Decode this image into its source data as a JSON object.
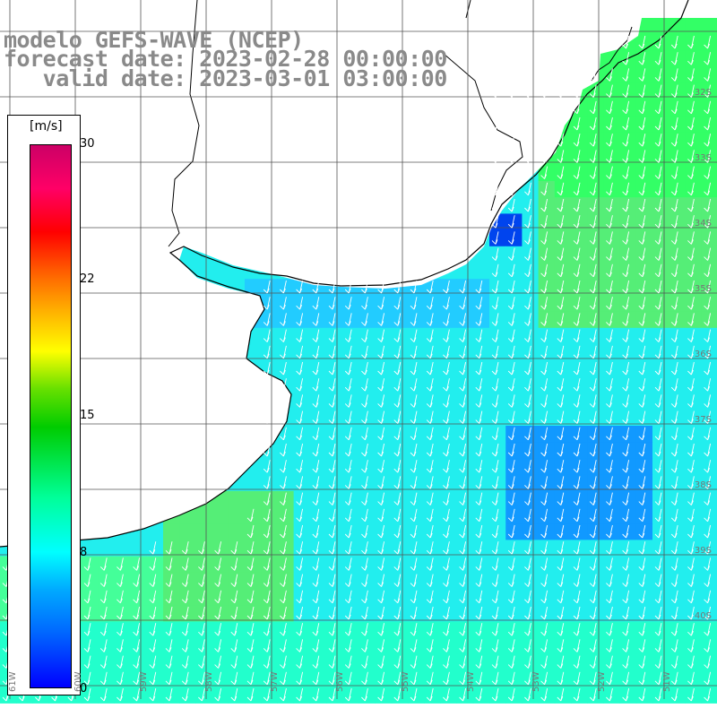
{
  "title": {
    "line1": "modelo GEFS-WAVE (NCEP)",
    "line2": "forecast date: 2023-02-28 00:00:00",
    "line3": "   valid date: 2023-03-01 03:00:00"
  },
  "colorbar": {
    "unit": "[m/s]",
    "ticks": [
      "30",
      "22",
      "15",
      "8",
      "0"
    ],
    "range": [
      0,
      30
    ]
  },
  "lat_labels": [
    "32S",
    "33S",
    "34S",
    "35S",
    "36S",
    "37S",
    "38S",
    "39S",
    "40S"
  ],
  "lon_labels": [
    "61W",
    "60W",
    "59W",
    "58W",
    "57W",
    "56W",
    "55W",
    "54W",
    "53W",
    "52W",
    "51W"
  ],
  "colors": {
    "land": "#ffffff",
    "coast": "#000000",
    "grid": "#555555",
    "arrow": "#ffffff",
    "title": "#8a8a8a"
  }
}
